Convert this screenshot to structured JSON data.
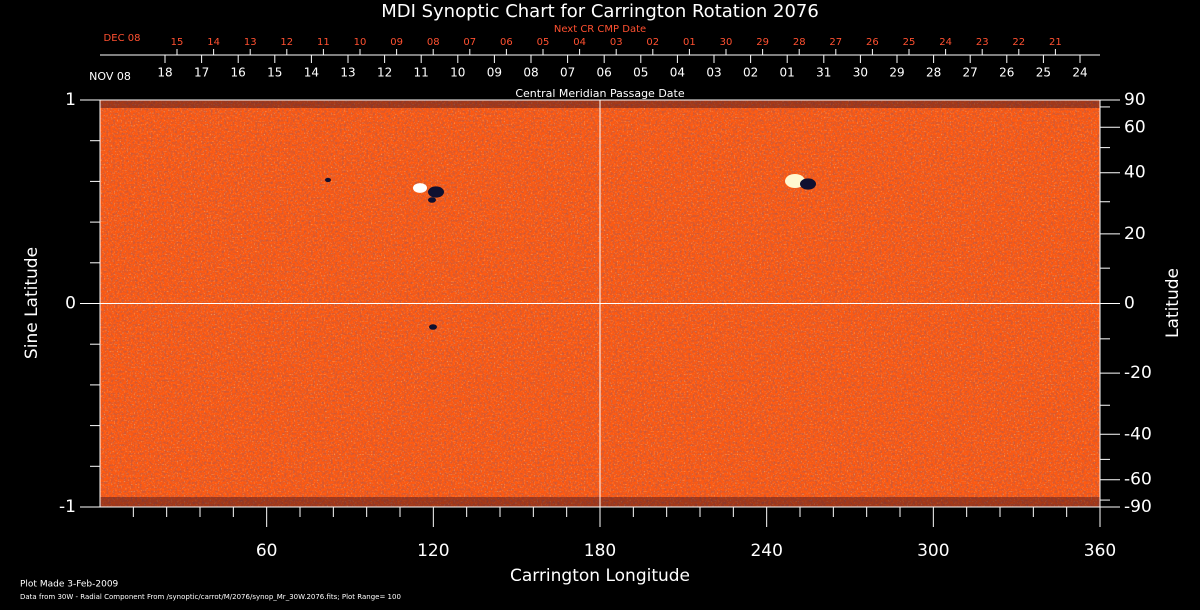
{
  "chart_data": {
    "type": "heatmap",
    "title": "MDI Synoptic Chart for Carrington Rotation 2076",
    "top_axis_title": "Next CR CMP Date",
    "top_axis_start": "DEC 08",
    "top_dates": [
      "15",
      "14",
      "13",
      "12",
      "11",
      "10",
      "09",
      "08",
      "07",
      "06",
      "05",
      "04",
      "03",
      "02",
      "01",
      "30",
      "29",
      "28",
      "27",
      "26",
      "25",
      "24",
      "23",
      "22",
      "21"
    ],
    "second_axis_start": "NOV 08",
    "second_dates": [
      "18",
      "17",
      "16",
      "15",
      "14",
      "13",
      "12",
      "11",
      "10",
      "09",
      "08",
      "07",
      "06",
      "05",
      "04",
      "03",
      "02",
      "01",
      "31",
      "30",
      "29",
      "28",
      "27",
      "26",
      "25",
      "24"
    ],
    "second_axis_title": "Central Meridian Passage Date",
    "x_label": "Carrington Longitude",
    "y_label": "Sine Latitude",
    "y2_label": "Latitude",
    "xlim": [
      0,
      360
    ],
    "xticks": [
      60,
      120,
      180,
      240,
      300,
      360
    ],
    "ylim": [
      -1,
      1
    ],
    "yticks": [
      -1,
      0,
      1
    ],
    "y2lim": [
      -90,
      90
    ],
    "y2scale": "sine",
    "y2ticks": [
      90,
      60,
      40,
      20,
      0,
      -20,
      -40,
      -60,
      -90
    ],
    "grid_x": [
      180
    ],
    "grid_y": [
      0
    ],
    "color": "#ff5a10",
    "footer_date": "Plot Made  3-Feb-2009",
    "footer_note": "Data from 30W - Radial Component From /synoptic/carrot/M/2076/synop_Mr_30W.2076.fits; Plot Range=  100"
  }
}
